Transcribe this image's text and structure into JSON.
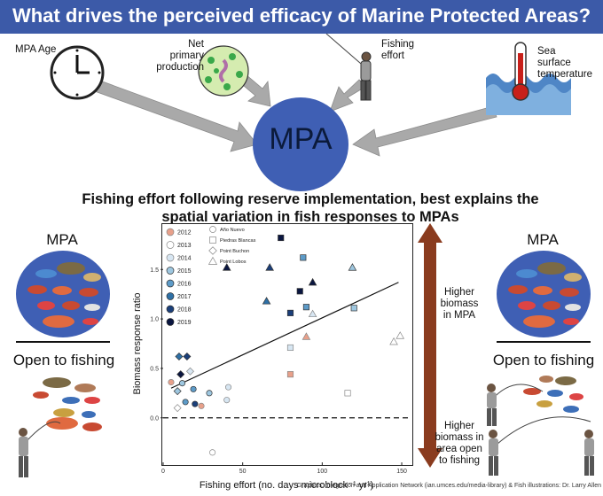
{
  "title": "What drives the perceived efficacy of Marine Protected Areas?",
  "drivers": {
    "age": "MPA Age",
    "npp": [
      "Net",
      "primary",
      "production"
    ],
    "fishing": [
      "Fishing",
      "effort"
    ],
    "sst": [
      "Sea",
      "surface",
      "temperature"
    ]
  },
  "center_label": "MPA",
  "subtitle_lines": [
    "Fishing effort following reserve implementation, best explains the",
    "spatial variation in fish responses to MPAs"
  ],
  "left_panel": {
    "mpa": "MPA",
    "open": "Open to fishing"
  },
  "right_panel": {
    "mpa": "MPA",
    "open": "Open to fishing"
  },
  "arrow_labels": {
    "up": [
      "Higher",
      "biomass",
      "in MPA"
    ],
    "down": [
      "Higher",
      "biomass in",
      "area open",
      "to fishing"
    ]
  },
  "credit": "Graphics: Integration and Application Network (ian.umces.edu/media-library) & Fish illustrations: Dr. Larry Allen",
  "colors": {
    "banner": "#3c5aa8",
    "mpa_blue": "#3f5fb4",
    "arrow_gray": "#a9a9a9",
    "arrow_brown": "#8a3b1e"
  },
  "chart_data": {
    "type": "scatter",
    "xlabel": "Fishing effort (no. days microblock⁻¹ yr¹)",
    "ylabel": "Biomass response ratio",
    "xlim": [
      0,
      155
    ],
    "ylim": [
      -0.45,
      1.95
    ],
    "xticks": [
      "0",
      "50",
      "100",
      "150"
    ],
    "yticks": [
      "0.0",
      "0.5",
      "1.0",
      "1.5"
    ],
    "reference_line_y": 0,
    "trend_line": {
      "x": [
        5,
        148
      ],
      "y": [
        0.3,
        1.37
      ]
    },
    "years": [
      {
        "label": "2012",
        "color": "#e8a08a"
      },
      {
        "label": "2013",
        "color": "#ffffff"
      },
      {
        "label": "2014",
        "color": "#d7e6f2"
      },
      {
        "label": "2015",
        "color": "#9ec7e0"
      },
      {
        "label": "2016",
        "color": "#5d9bc8"
      },
      {
        "label": "2017",
        "color": "#2e70a6"
      },
      {
        "label": "2018",
        "color": "#1b3f7a"
      },
      {
        "label": "2019",
        "color": "#0a1640"
      }
    ],
    "sites": [
      {
        "label": "Año Nuevo",
        "shape": "circle"
      },
      {
        "label": "Piedras Blancas",
        "shape": "square"
      },
      {
        "label": "Point Buchon",
        "shape": "diamond"
      },
      {
        "label": "Point Lobos",
        "shape": "triangle"
      }
    ],
    "points": [
      {
        "x": 5,
        "y": 0.36,
        "site": "circle",
        "year": "2012"
      },
      {
        "x": 24,
        "y": 0.12,
        "site": "circle",
        "year": "2012"
      },
      {
        "x": 12,
        "y": 0.35,
        "site": "circle",
        "year": "2015"
      },
      {
        "x": 19,
        "y": 0.29,
        "site": "circle",
        "year": "2016"
      },
      {
        "x": 14,
        "y": 0.16,
        "site": "circle",
        "year": "2016"
      },
      {
        "x": 29,
        "y": 0.25,
        "site": "circle",
        "year": "2015"
      },
      {
        "x": 40,
        "y": 0.18,
        "site": "circle",
        "year": "2014"
      },
      {
        "x": 41,
        "y": 0.31,
        "site": "circle",
        "year": "2014"
      },
      {
        "x": 20,
        "y": 0.14,
        "site": "circle",
        "year": "2018"
      },
      {
        "x": 31,
        "y": -0.35,
        "site": "circle",
        "year": "2013"
      },
      {
        "x": 10,
        "y": 0.62,
        "site": "diamond",
        "year": "2017"
      },
      {
        "x": 15,
        "y": 0.62,
        "site": "diamond",
        "year": "2018"
      },
      {
        "x": 11,
        "y": 0.44,
        "site": "diamond",
        "year": "2019"
      },
      {
        "x": 9,
        "y": 0.27,
        "site": "diamond",
        "year": "2015"
      },
      {
        "x": 9,
        "y": 0.1,
        "site": "diamond",
        "year": "2013"
      },
      {
        "x": 17,
        "y": 0.47,
        "site": "diamond",
        "year": "2014"
      },
      {
        "x": 74,
        "y": 1.82,
        "site": "square",
        "year": "2019"
      },
      {
        "x": 88,
        "y": 1.62,
        "site": "square",
        "year": "2016"
      },
      {
        "x": 86,
        "y": 1.28,
        "site": "square",
        "year": "2019"
      },
      {
        "x": 90,
        "y": 1.12,
        "site": "square",
        "year": "2016"
      },
      {
        "x": 80,
        "y": 1.06,
        "site": "square",
        "year": "2018"
      },
      {
        "x": 120,
        "y": 1.11,
        "site": "square",
        "year": "2015"
      },
      {
        "x": 80,
        "y": 0.71,
        "site": "square",
        "year": "2014"
      },
      {
        "x": 80,
        "y": 0.44,
        "site": "square",
        "year": "2012"
      },
      {
        "x": 116,
        "y": 0.25,
        "site": "square",
        "year": "2013"
      },
      {
        "x": 40,
        "y": 1.52,
        "site": "triangle",
        "year": "2019"
      },
      {
        "x": 67,
        "y": 1.52,
        "site": "triangle",
        "year": "2018"
      },
      {
        "x": 119,
        "y": 1.52,
        "site": "triangle",
        "year": "2015"
      },
      {
        "x": 94,
        "y": 1.37,
        "site": "triangle",
        "year": "2019"
      },
      {
        "x": 65,
        "y": 1.18,
        "site": "triangle",
        "year": "2017"
      },
      {
        "x": 94,
        "y": 1.05,
        "site": "triangle",
        "year": "2014"
      },
      {
        "x": 90,
        "y": 0.82,
        "site": "triangle",
        "year": "2012"
      },
      {
        "x": 145,
        "y": 0.77,
        "site": "triangle",
        "year": "2013"
      },
      {
        "x": 149,
        "y": 0.83,
        "site": "triangle",
        "year": "2013"
      }
    ]
  }
}
